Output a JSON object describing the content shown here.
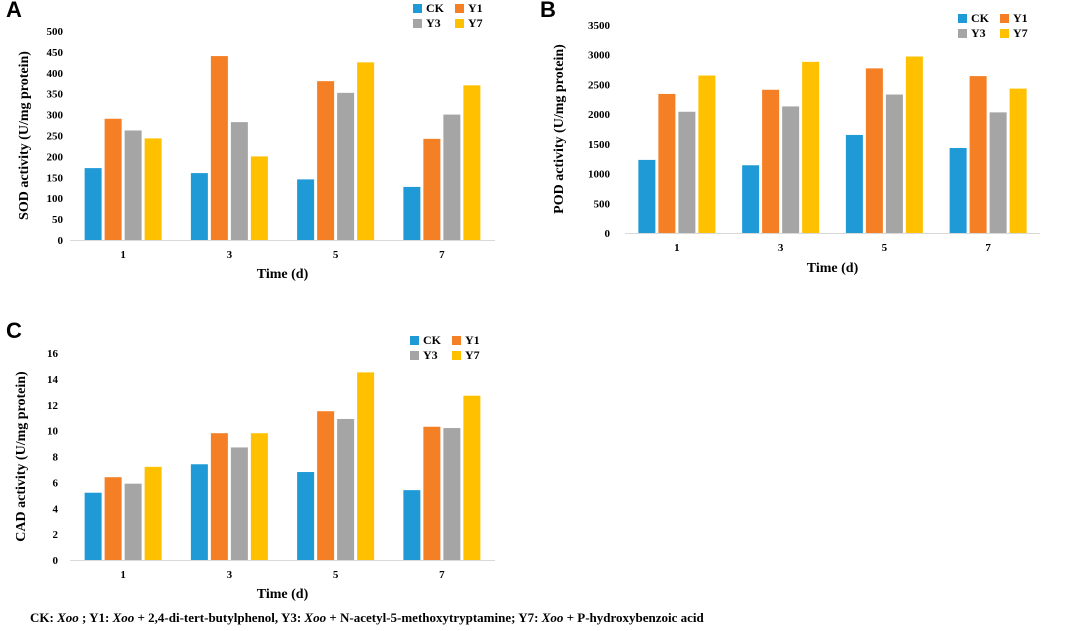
{
  "panels": [
    {
      "letter": "A"
    },
    {
      "letter": "B"
    },
    {
      "letter": "C"
    }
  ],
  "colors": {
    "CK": "#1f9ad6",
    "Y1": "#f47f24",
    "Y3": "#a5a5a5",
    "Y7": "#ffc000"
  },
  "chart_data": [
    {
      "type": "bar",
      "panel": "A",
      "title": "",
      "xlabel": "Time (d)",
      "ylabel": "SOD activity (U/mg protein)",
      "categories": [
        "1",
        "3",
        "5",
        "7"
      ],
      "ylim": [
        0,
        500
      ],
      "yticks": [
        0,
        50,
        100,
        150,
        200,
        250,
        300,
        350,
        400,
        450,
        500
      ],
      "legend_position": "top-right",
      "series": [
        {
          "name": "CK",
          "values": [
            172,
            160,
            145,
            127
          ]
        },
        {
          "name": "Y1",
          "values": [
            290,
            440,
            380,
            242
          ]
        },
        {
          "name": "Y3",
          "values": [
            262,
            282,
            352,
            300
          ]
        },
        {
          "name": "Y7",
          "values": [
            243,
            200,
            425,
            370
          ]
        }
      ]
    },
    {
      "type": "bar",
      "panel": "B",
      "title": "",
      "xlabel": "Time (d)",
      "ylabel": "POD activity (U/mg protein)",
      "categories": [
        "1",
        "3",
        "5",
        "7"
      ],
      "ylim": [
        0,
        3500
      ],
      "yticks": [
        0,
        500,
        1000,
        1500,
        2000,
        2500,
        3000,
        3500
      ],
      "legend_position": "top-right",
      "series": [
        {
          "name": "CK",
          "values": [
            1230,
            1140,
            1650,
            1430
          ]
        },
        {
          "name": "Y1",
          "values": [
            2340,
            2410,
            2770,
            2640
          ]
        },
        {
          "name": "Y3",
          "values": [
            2040,
            2130,
            2330,
            2030
          ]
        },
        {
          "name": "Y7",
          "values": [
            2650,
            2880,
            2970,
            2430
          ]
        }
      ]
    },
    {
      "type": "bar",
      "panel": "C",
      "title": "",
      "xlabel": "Time (d)",
      "ylabel": "CAD activity (U/mg protein)",
      "categories": [
        "1",
        "3",
        "5",
        "7"
      ],
      "ylim": [
        0,
        16
      ],
      "yticks": [
        0,
        2,
        4,
        6,
        8,
        10,
        12,
        14,
        16
      ],
      "legend_position": "top-right",
      "series": [
        {
          "name": "CK",
          "values": [
            5.2,
            7.4,
            6.8,
            5.4
          ]
        },
        {
          "name": "Y1",
          "values": [
            6.4,
            9.8,
            11.5,
            10.3
          ]
        },
        {
          "name": "Y3",
          "values": [
            5.9,
            8.7,
            10.9,
            10.2
          ]
        },
        {
          "name": "Y7",
          "values": [
            7.2,
            9.8,
            14.5,
            12.7
          ]
        }
      ]
    }
  ],
  "caption": {
    "ck_label": "CK: ",
    "ck_italic": "Xoo",
    "y1_label": " ; Y1: ",
    "y1_italic": "Xoo",
    "y1_rest": " + 2,4-di-tert-butylphenol, Y3: ",
    "y3_italic": "Xoo",
    "y3_rest": " + N-acetyl-5-methoxytryptamine;  Y7: ",
    "y7_italic": "Xoo",
    "y7_rest": " + P-hydroxybenzoic acid"
  }
}
